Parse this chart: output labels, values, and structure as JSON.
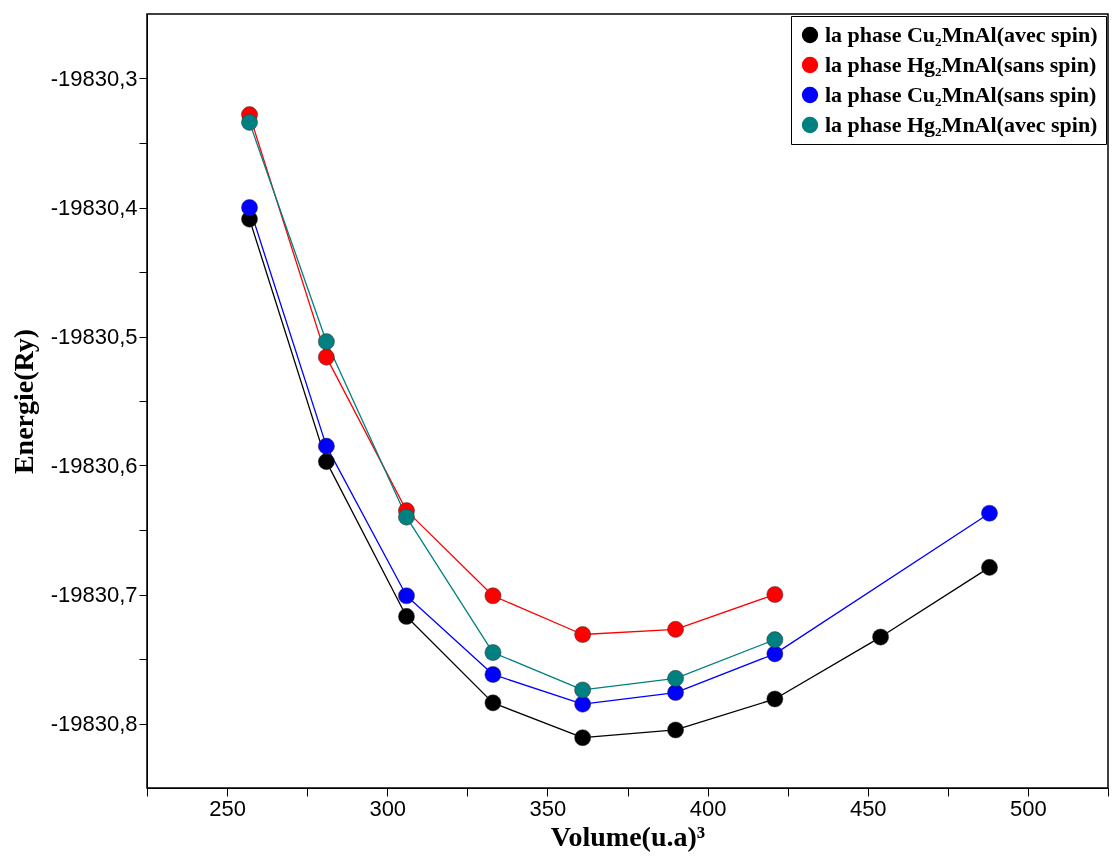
{
  "chart_data": {
    "type": "line",
    "xlabel": "Volume(u.a)³",
    "ylabel": "Energie(Ry)",
    "xlim": [
      225,
      525
    ],
    "ylim": [
      -19830.85,
      -19830.25
    ],
    "xticks": [
      {
        "value": 225,
        "label": null
      },
      250,
      {
        "value": 275,
        "label": null
      },
      300,
      {
        "value": 325,
        "label": null
      },
      350,
      {
        "value": 375,
        "label": null
      },
      400,
      {
        "value": 425,
        "label": null
      },
      450,
      {
        "value": 475,
        "label": null
      },
      500,
      {
        "value": 525,
        "label": null
      }
    ],
    "yticks": [
      {
        "value": -19830.8,
        "label": "-19830,8"
      },
      {
        "value": -19830.75,
        "label": null
      },
      {
        "value": -19830.7,
        "label": "-19830,7"
      },
      {
        "value": -19830.65,
        "label": null
      },
      {
        "value": -19830.6,
        "label": "-19830,6"
      },
      {
        "value": -19830.55,
        "label": null
      },
      {
        "value": -19830.5,
        "label": "-19830,5"
      },
      {
        "value": -19830.45,
        "label": null
      },
      {
        "value": -19830.4,
        "label": "-19830,4"
      },
      {
        "value": -19830.35,
        "label": null
      },
      {
        "value": -19830.3,
        "label": "-19830,3"
      }
    ],
    "marker": "circle",
    "line_style": "solid",
    "grid": false,
    "legend": "top right",
    "series": [
      {
        "name": "la phase Cu₂MnAl(avec spin)",
        "color": "#000000",
        "x": [
          257,
          281,
          306,
          333,
          361,
          390,
          421,
          454,
          488
        ],
        "values": [
          -19830.409,
          -19830.597,
          -19830.717,
          -19830.784,
          -19830.811,
          -19830.805,
          -19830.781,
          -19830.733,
          -19830.679
        ]
      },
      {
        "name": "la phase Hg₂MnAl(sans spin)",
        "color": "#ff0000",
        "x": [
          257,
          281,
          306,
          333,
          361,
          390,
          421
        ],
        "values": [
          -19830.328,
          -19830.516,
          -19830.635,
          -19830.701,
          -19830.731,
          -19830.727,
          -19830.7
        ]
      },
      {
        "name": "la phase Cu₂MnAl(sans spin)",
        "color": "#0000ff",
        "x": [
          257,
          281,
          306,
          333,
          361,
          390,
          421,
          488
        ],
        "values": [
          -19830.4,
          -19830.585,
          -19830.701,
          -19830.762,
          -19830.785,
          -19830.776,
          -19830.746,
          -19830.637
        ]
      },
      {
        "name": "la phase Hg₂MnAl(avec spin)",
        "color": "#008080",
        "x": [
          257,
          281,
          306,
          333,
          361,
          390,
          421
        ],
        "values": [
          -19830.334,
          -19830.504,
          -19830.64,
          -19830.745,
          -19830.774,
          -19830.765,
          -19830.735
        ]
      }
    ]
  }
}
